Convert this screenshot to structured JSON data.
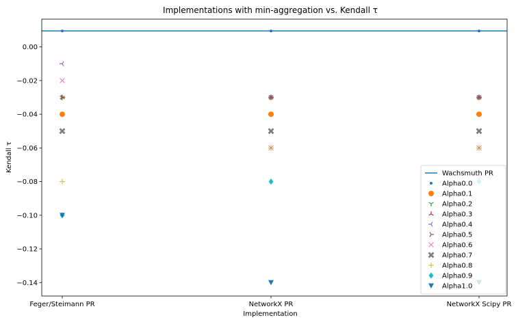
{
  "chart_data": {
    "type": "scatter",
    "title": "Implementations with min-aggregation vs. Kendall τ",
    "xlabel": "Implementation",
    "ylabel": "Kendall τ",
    "categories": [
      "Feger/Steimann PR",
      "NetworkX PR",
      "NetworkX Scipy PR"
    ],
    "ylim": [
      -0.148,
      0.0165
    ],
    "yticks": [
      "0.00",
      "−0.02",
      "−0.04",
      "−0.06",
      "−0.08",
      "−0.10",
      "−0.12",
      "−0.14"
    ],
    "ytick_values": [
      0.0,
      -0.02,
      -0.04,
      -0.06,
      -0.08,
      -0.1,
      -0.12,
      -0.14
    ],
    "grid": false,
    "legend_position": "lower-right",
    "reference_line": {
      "name": "Wachsmuth PR",
      "value": 0.0095,
      "color": "#1f77b4"
    },
    "series": [
      {
        "name": "Alpha0.0",
        "marker": "point",
        "color": "#1f77b4",
        "values": [
          0.0095,
          0.0095,
          0.0095
        ]
      },
      {
        "name": "Alpha0.1",
        "marker": "circle",
        "color": "#ff7f0e",
        "values": [
          -0.04,
          -0.04,
          -0.04
        ]
      },
      {
        "name": "Alpha0.2",
        "marker": "tri_down",
        "color": "#2ca02c",
        "values": [
          -0.03,
          -0.03,
          -0.03
        ]
      },
      {
        "name": "Alpha0.3",
        "marker": "tri_up",
        "color": "#d62728",
        "values": [
          -0.03,
          -0.03,
          -0.03
        ]
      },
      {
        "name": "Alpha0.4",
        "marker": "tri_left",
        "color": "#9467bd",
        "values": [
          -0.01,
          -0.03,
          -0.03
        ]
      },
      {
        "name": "Alpha0.5",
        "marker": "tri_right",
        "color": "#8c564b",
        "values": [
          -0.03,
          -0.03,
          -0.03
        ]
      },
      {
        "name": "Alpha0.6",
        "marker": "x",
        "color": "#e377c2",
        "values": [
          -0.02,
          -0.06,
          -0.06
        ]
      },
      {
        "name": "Alpha0.7",
        "marker": "X",
        "color": "#7f7f7f",
        "values": [
          -0.05,
          -0.05,
          -0.05
        ]
      },
      {
        "name": "Alpha0.8",
        "marker": "plus",
        "color": "#bcbd22",
        "values": [
          -0.08,
          -0.06,
          -0.06
        ]
      },
      {
        "name": "Alpha0.9",
        "marker": "diamond",
        "color": "#17becf",
        "values": [
          -0.1,
          -0.08,
          -0.08
        ]
      },
      {
        "name": "Alpha1.0",
        "marker": "triangle_down",
        "color": "#1f77b4",
        "values": [
          -0.1,
          -0.14,
          -0.14
        ]
      }
    ]
  }
}
